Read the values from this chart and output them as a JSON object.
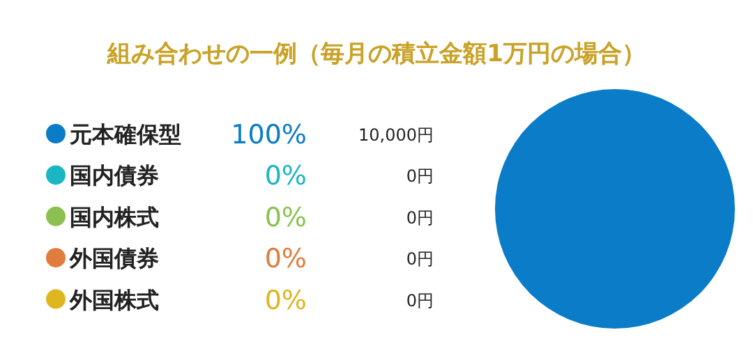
{
  "chart_data": {
    "type": "pie",
    "title": "組み合わせの一例（毎月の積立金額1万円の場合）",
    "categories": [
      "元本確保型",
      "国内債券",
      "国内株式",
      "外国債券",
      "外国株式"
    ],
    "values": [
      100,
      0,
      0,
      0,
      0
    ],
    "colors": [
      "#0a7cc8",
      "#1bb6c4",
      "#8cc152",
      "#e07c3c",
      "#dfb520"
    ],
    "value_labels": [
      "100%",
      "0%",
      "0%",
      "0%",
      "0%"
    ],
    "annotations": [
      "10,000円",
      "0円",
      "0円",
      "0円",
      "0円"
    ],
    "legend": "left"
  }
}
